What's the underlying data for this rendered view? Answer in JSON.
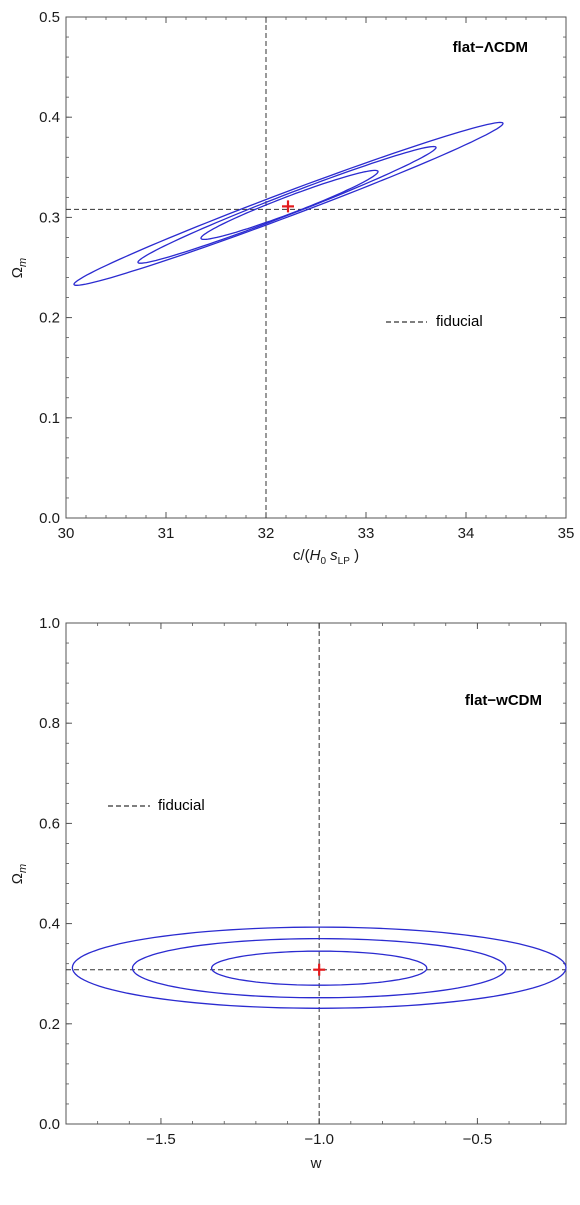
{
  "colors": {
    "contour": "#2b2bd0",
    "fiducial": "#333333",
    "bestfit": "#e31a1c",
    "frame": "#555555"
  },
  "chart_data": [
    {
      "type": "contour",
      "model_label": "flat−ΛCDM",
      "xlabel_parts": [
        "c/(",
        "H",
        "0",
        " ",
        "s",
        "LP",
        " )"
      ],
      "ylabel_parts": [
        "Ω",
        "m"
      ],
      "legend": {
        "label": "fiducial",
        "placement": "right-middle"
      },
      "xlim": [
        30,
        35
      ],
      "ylim": [
        0.0,
        0.5
      ],
      "xticks": [
        "30",
        "31",
        "32",
        "33",
        "34",
        "35"
      ],
      "yticks": [
        "0.0",
        "0.1",
        "0.2",
        "0.3",
        "0.4",
        "0.5"
      ],
      "fiducial": {
        "x": 32.0,
        "y": 0.308
      },
      "best_fit": {
        "x": 32.22,
        "y": 0.311
      },
      "contours": [
        {
          "level": 1,
          "center": [
            32.22,
            0.312
          ],
          "end1": [
            31.35,
            0.279
          ],
          "end2": [
            33.12,
            0.346
          ],
          "halfwidth": 0.0085
        },
        {
          "level": 2,
          "center": [
            32.22,
            0.312
          ],
          "end1": [
            30.72,
            0.255
          ],
          "end2": [
            33.7,
            0.37
          ],
          "halfwidth": 0.01
        },
        {
          "level": 3,
          "center": [
            32.22,
            0.313
          ],
          "end1": [
            30.08,
            0.233
          ],
          "end2": [
            34.37,
            0.394
          ],
          "halfwidth": 0.012
        }
      ]
    },
    {
      "type": "contour",
      "model_label": "flat−wCDM",
      "xlabel_parts": [
        "w"
      ],
      "ylabel_parts": [
        "Ω",
        "m"
      ],
      "legend": {
        "label": "fiducial",
        "placement": "left-upper"
      },
      "xlim": [
        -1.8,
        -0.22
      ],
      "ylim": [
        0.0,
        1.0
      ],
      "xticks": [
        "−1.5",
        "−1.0",
        "−0.5"
      ],
      "xtick_values": [
        -1.5,
        -1.0,
        -0.5
      ],
      "yticks": [
        "0.0",
        "0.2",
        "0.4",
        "0.6",
        "0.8",
        "1.0"
      ],
      "fiducial": {
        "x": -1.0,
        "y": 0.308
      },
      "best_fit": {
        "x": -1.0,
        "y": 0.308
      },
      "contours": [
        {
          "level": 1,
          "center": [
            -1.0,
            0.311
          ],
          "rx": 0.34,
          "ry": 0.034
        },
        {
          "level": 2,
          "center": [
            -1.0,
            0.311
          ],
          "rx": 0.59,
          "ry": 0.059
        },
        {
          "level": 3,
          "center": [
            -1.0,
            0.312
          ],
          "rx": 0.78,
          "ry": 0.081
        }
      ]
    }
  ]
}
